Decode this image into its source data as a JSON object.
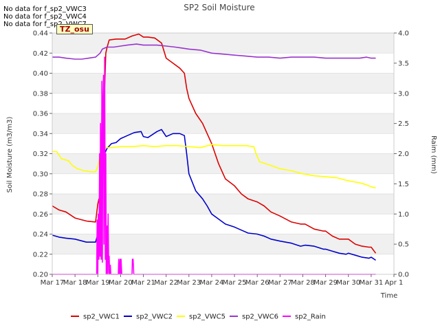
{
  "no_data_notes": [
    "No data for f_sp2_VWC3",
    "No data for f_sp2_VWC4",
    "No data for f_sp2_VWC7"
  ],
  "tag": "TZ_osu",
  "chart_data": {
    "type": "line",
    "title": "SP2 Soil Moisture",
    "xlabel": "Time",
    "ylabel": "Soil Moisture (m3/m3)",
    "y2label": "Raim (mm)",
    "xlim": [
      17,
      32
    ],
    "ylim": [
      0.2,
      0.44
    ],
    "y2lim": [
      0,
      4.0
    ],
    "x_ticks": [
      17,
      18,
      19,
      20,
      21,
      22,
      23,
      24,
      25,
      26,
      27,
      28,
      29,
      30,
      31,
      32
    ],
    "x_tick_labels": [
      "Mar 17",
      "Mar 18",
      "Mar 19",
      "Mar 20",
      "Mar 21",
      "Mar 22",
      "Mar 23",
      "Mar 24",
      "Mar 25",
      "Mar 26",
      "Mar 27",
      "Mar 28",
      "Mar 29",
      "Mar 30",
      "Mar 31",
      "Apr 1"
    ],
    "y_ticks": [
      0.2,
      0.22,
      0.24,
      0.26,
      0.28,
      0.3,
      0.32,
      0.34,
      0.36,
      0.38,
      0.4,
      0.42,
      0.44
    ],
    "y_tick_labels": [
      "0.20",
      "0.22",
      "0.24",
      "0.26",
      "0.28",
      "0.30",
      "0.32",
      "0.34",
      "0.36",
      "0.38",
      "0.40",
      "0.42",
      "0.44"
    ],
    "y2_ticks": [
      0,
      0.5,
      1.0,
      1.5,
      2.0,
      2.5,
      3.0,
      3.5,
      4.0
    ],
    "y2_tick_labels": [
      "0.0",
      "0.5",
      "1.0",
      "1.5",
      "2.0",
      "2.5",
      "3.0",
      "3.5",
      "4.0"
    ],
    "grid": "horizontal bands",
    "legend_position": "bottom",
    "series": [
      {
        "name": "sp2_VWC1",
        "color": "#dd0000",
        "axis": "left",
        "x": [
          17.0,
          17.3,
          17.6,
          18.0,
          18.5,
          18.9,
          19.0,
          19.05,
          19.15,
          19.25,
          19.3,
          19.35,
          19.4,
          19.5,
          19.8,
          20.2,
          20.5,
          20.8,
          21.0,
          21.2,
          21.5,
          21.8,
          22.0,
          22.3,
          22.6,
          22.8,
          22.9,
          23.0,
          23.3,
          23.6,
          23.8,
          24.0,
          24.3,
          24.6,
          25.0,
          25.3,
          25.6,
          26.0,
          26.3,
          26.6,
          27.0,
          27.5,
          27.9,
          28.1,
          28.5,
          28.9,
          29.0,
          29.3,
          29.6,
          29.9,
          30.0,
          30.3,
          30.6,
          30.9,
          31.0,
          31.2
        ],
        "y": [
          0.268,
          0.264,
          0.262,
          0.256,
          0.253,
          0.252,
          0.27,
          0.275,
          0.275,
          0.37,
          0.385,
          0.42,
          0.425,
          0.433,
          0.434,
          0.434,
          0.437,
          0.439,
          0.436,
          0.436,
          0.435,
          0.43,
          0.415,
          0.41,
          0.405,
          0.4,
          0.385,
          0.375,
          0.36,
          0.35,
          0.34,
          0.33,
          0.31,
          0.295,
          0.288,
          0.28,
          0.275,
          0.272,
          0.268,
          0.262,
          0.258,
          0.252,
          0.25,
          0.25,
          0.245,
          0.243,
          0.243,
          0.238,
          0.235,
          0.235,
          0.235,
          0.23,
          0.228,
          0.227,
          0.227,
          0.221
        ]
      },
      {
        "name": "sp2_VWC2",
        "color": "#0000cc",
        "axis": "left",
        "x": [
          17.0,
          17.3,
          17.6,
          18.0,
          18.5,
          18.9,
          19.0,
          19.05,
          19.15,
          19.25,
          19.3,
          19.4,
          19.6,
          19.8,
          20.0,
          20.3,
          20.6,
          20.9,
          21.0,
          21.2,
          21.4,
          21.6,
          21.8,
          22.0,
          22.3,
          22.6,
          22.8,
          22.9,
          23.0,
          23.3,
          23.6,
          23.8,
          24.0,
          24.3,
          24.6,
          25.0,
          25.3,
          25.6,
          26.0,
          26.3,
          26.6,
          27.0,
          27.5,
          27.9,
          28.1,
          28.5,
          28.9,
          29.0,
          29.3,
          29.6,
          29.9,
          30.0,
          30.3,
          30.6,
          30.9,
          31.0,
          31.2
        ],
        "y": [
          0.239,
          0.237,
          0.236,
          0.235,
          0.232,
          0.232,
          0.24,
          0.245,
          0.27,
          0.32,
          0.32,
          0.325,
          0.33,
          0.331,
          0.335,
          0.338,
          0.341,
          0.342,
          0.337,
          0.336,
          0.339,
          0.342,
          0.344,
          0.337,
          0.34,
          0.34,
          0.338,
          0.32,
          0.3,
          0.283,
          0.275,
          0.268,
          0.26,
          0.255,
          0.25,
          0.247,
          0.244,
          0.241,
          0.24,
          0.238,
          0.235,
          0.233,
          0.231,
          0.228,
          0.229,
          0.228,
          0.225,
          0.225,
          0.223,
          0.221,
          0.22,
          0.221,
          0.219,
          0.217,
          0.216,
          0.217,
          0.214
        ]
      },
      {
        "name": "sp2_VWC5",
        "color": "#ffff00",
        "axis": "left",
        "x": [
          17.0,
          17.2,
          17.4,
          17.7,
          17.9,
          18.1,
          18.4,
          18.7,
          18.9,
          19.0,
          19.1,
          19.2,
          19.3,
          19.6,
          20.0,
          20.5,
          21.0,
          21.5,
          22.0,
          22.5,
          23.0,
          23.5,
          24.0,
          24.5,
          25.0,
          25.5,
          25.85,
          25.95,
          26.1,
          26.5,
          27.0,
          27.5,
          28.0,
          28.5,
          29.0,
          29.5,
          30.0,
          30.5,
          30.8,
          31.0,
          31.2
        ],
        "y": [
          0.322,
          0.322,
          0.315,
          0.313,
          0.308,
          0.305,
          0.303,
          0.302,
          0.302,
          0.307,
          0.32,
          0.326,
          0.326,
          0.326,
          0.327,
          0.327,
          0.328,
          0.327,
          0.328,
          0.328,
          0.327,
          0.326,
          0.329,
          0.328,
          0.328,
          0.328,
          0.327,
          0.32,
          0.312,
          0.309,
          0.305,
          0.303,
          0.3,
          0.298,
          0.297,
          0.296,
          0.293,
          0.291,
          0.289,
          0.287,
          0.286
        ]
      },
      {
        "name": "sp2_VWC6",
        "color": "#9933cc",
        "axis": "left",
        "x": [
          17.0,
          17.3,
          17.6,
          18.0,
          18.3,
          18.6,
          18.9,
          19.0,
          19.1,
          19.2,
          19.4,
          19.7,
          20.0,
          20.3,
          20.7,
          21.0,
          21.3,
          21.6,
          22.0,
          22.4,
          22.7,
          23.0,
          23.5,
          24.0,
          24.5,
          25.0,
          25.5,
          26.0,
          26.5,
          27.0,
          27.5,
          28.0,
          28.5,
          29.0,
          29.5,
          30.0,
          30.5,
          30.8,
          31.0,
          31.2
        ],
        "y": [
          0.416,
          0.416,
          0.415,
          0.414,
          0.414,
          0.415,
          0.416,
          0.418,
          0.42,
          0.424,
          0.426,
          0.426,
          0.427,
          0.428,
          0.429,
          0.428,
          0.428,
          0.428,
          0.427,
          0.426,
          0.425,
          0.424,
          0.423,
          0.42,
          0.419,
          0.418,
          0.417,
          0.416,
          0.416,
          0.415,
          0.416,
          0.416,
          0.416,
          0.415,
          0.415,
          0.415,
          0.415,
          0.416,
          0.415,
          0.415
        ]
      },
      {
        "name": "sp2_Rain",
        "color": "#ff00ff",
        "axis": "right",
        "x": [
          17.0,
          18.95,
          18.97,
          19.0,
          19.02,
          19.05,
          19.08,
          19.1,
          19.12,
          19.15,
          19.18,
          19.2,
          19.22,
          19.25,
          19.27,
          19.3,
          19.33,
          19.35,
          19.37,
          19.4,
          19.42,
          19.45,
          19.48,
          19.5,
          19.52,
          19.55,
          19.57,
          19.6,
          19.8,
          19.9,
          19.92,
          19.95,
          19.98,
          20.0,
          20.02,
          20.05,
          20.08,
          20.1,
          20.5,
          20.52,
          20.55,
          20.58,
          20.6,
          31.2
        ],
        "y": [
          0,
          0,
          0.9,
          0,
          1.0,
          0.25,
          2.0,
          0.3,
          2.5,
          0.25,
          3.2,
          0.2,
          2.8,
          3.3,
          0.5,
          3.6,
          0.25,
          2.0,
          0,
          0.8,
          0,
          1.0,
          0,
          0.3,
          0,
          0.15,
          0,
          0,
          0,
          0,
          0.25,
          0,
          0.25,
          0,
          0.25,
          0,
          0,
          0,
          0,
          0.25,
          0.25,
          0,
          0,
          0
        ]
      }
    ]
  }
}
